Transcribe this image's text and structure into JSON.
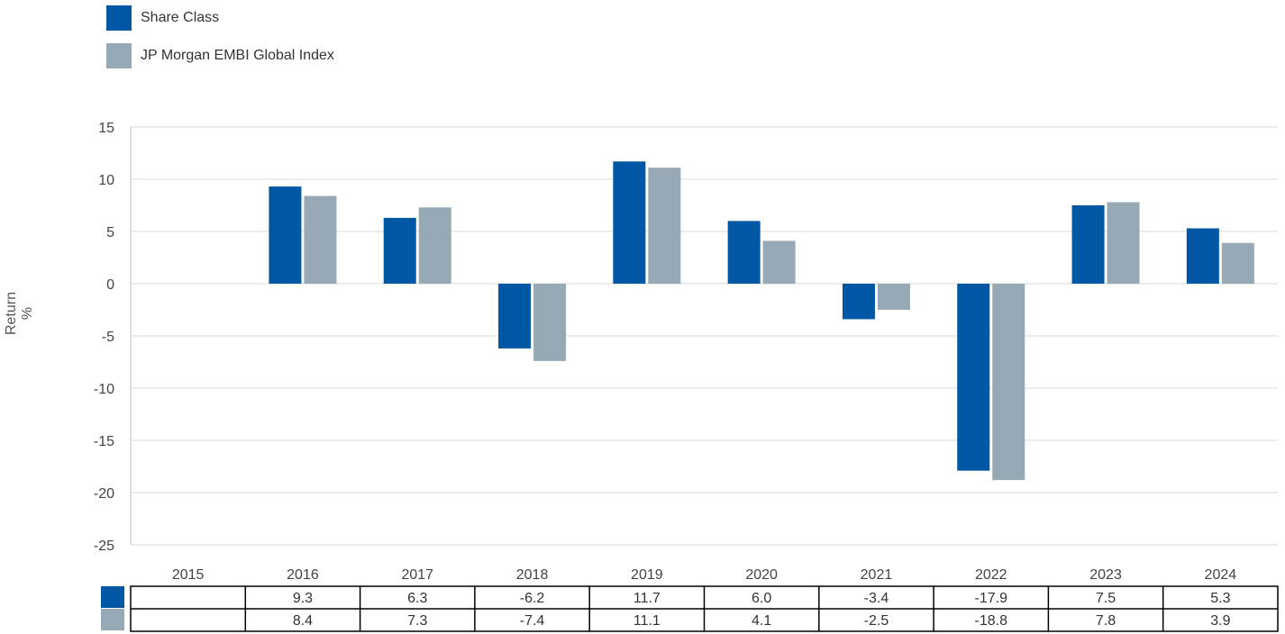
{
  "chart_data": {
    "type": "bar",
    "categories": [
      "2015",
      "2016",
      "2017",
      "2018",
      "2019",
      "2020",
      "2021",
      "2022",
      "2023",
      "2024"
    ],
    "series": [
      {
        "name": "Share Class",
        "color": "#0057a3",
        "values": [
          null,
          9.3,
          6.3,
          -6.2,
          11.7,
          6.0,
          -3.4,
          -17.9,
          7.5,
          5.3
        ],
        "labels": [
          "",
          "9.3",
          "6.3",
          "-6.2",
          "11.7",
          "6.0",
          "-3.4",
          "-17.9",
          "7.5",
          "5.3"
        ]
      },
      {
        "name": "JP Morgan EMBI Global Index",
        "color": "#97a9b5",
        "values": [
          null,
          8.4,
          7.3,
          -7.4,
          11.1,
          4.1,
          -2.5,
          -18.8,
          7.8,
          3.9
        ],
        "labels": [
          "",
          "8.4",
          "7.3",
          "-7.4",
          "11.1",
          "4.1",
          "-2.5",
          "-18.8",
          "7.8",
          "3.9"
        ]
      }
    ],
    "ylabel": "Return %",
    "ylim": [
      -25,
      15
    ],
    "yticks": [
      15,
      10,
      5,
      0,
      -5,
      -10,
      -15,
      -20,
      -25
    ],
    "ytick_labels": [
      "15",
      "10",
      "5",
      "0",
      "-5",
      "-10",
      "-15",
      "-20",
      "-25"
    ],
    "grid": true,
    "legend_position": "top-left",
    "data_table": true
  }
}
